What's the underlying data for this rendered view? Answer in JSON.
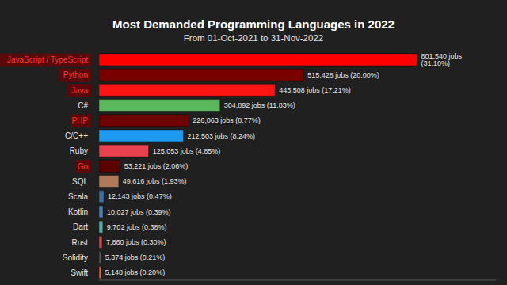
{
  "chart_data": {
    "type": "bar",
    "orientation": "horizontal",
    "title": "Most Demanded Programming Languages in 2022",
    "subtitle": "From 01-Oct-2021 to 31-Nov-2022",
    "categories": [
      "JavaScript / TypeScript",
      "Python",
      "Java",
      "C#",
      "PHP",
      "C/C++",
      "Ruby",
      "Go",
      "SQL",
      "Scala",
      "Kotlin",
      "Dart",
      "Rust",
      "Solidity",
      "Swift"
    ],
    "values": [
      801540,
      515428,
      443508,
      304892,
      226063,
      212503,
      125053,
      53221,
      49616,
      12143,
      10027,
      9702,
      7860,
      5374,
      5148
    ],
    "value_labels": [
      "801,540 jobs (31.10%)",
      "515,428 jobs (20.00%)",
      "443,508 jobs (17.21%)",
      "304,892 jobs (11.83%)",
      "226,063 jobs (8.77%)",
      "212,503 jobs (8.24%)",
      "125,053 jobs (4.85%)",
      "53,221 jobs (2.06%)",
      "49,616 jobs (1.93%)",
      "12,143 jobs (0.47%)",
      "10,027 jobs (0.39%)",
      "9,702 jobs (0.38%)",
      "7,860 jobs (0.30%)",
      "5,374 jobs (0.21%)",
      "5,148 jobs (0.20%)"
    ],
    "colors": [
      "#ff0000",
      "#7a0000",
      "#ff1414",
      "#5cb85c",
      "#6e0000",
      "#1e9bf0",
      "#e8414f",
      "#5c0000",
      "#b07a5a",
      "#3f6f9f",
      "#4a7fb5",
      "#4fb0a0",
      "#d04a4a",
      "#555555",
      "#e0603a"
    ],
    "xlim": [
      0,
      1000000
    ],
    "data_labels": true,
    "tick_labels": "y",
    "grid": false
  }
}
